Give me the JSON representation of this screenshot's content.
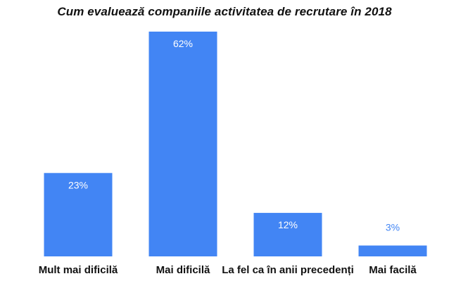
{
  "chart_data": {
    "type": "bar",
    "title": "Cum evaluează companiile activitatea de recrutare în 2018",
    "xlabel": "",
    "ylabel": "",
    "categories": [
      "Mult mai dificilă",
      "Mai dificilă",
      "La fel ca în anii precedenți",
      "Mai facilă"
    ],
    "values": [
      23,
      62,
      12,
      3
    ],
    "data_labels": [
      "23%",
      "62%",
      "12%",
      "3%"
    ],
    "unit": "%",
    "ylim": [
      0,
      62
    ],
    "grid": false,
    "legend": "none"
  },
  "colors": {
    "bar": "#4285f4",
    "label_inside": "#ffffff",
    "label_outside": "#4285f4",
    "category_text": "#111111"
  }
}
